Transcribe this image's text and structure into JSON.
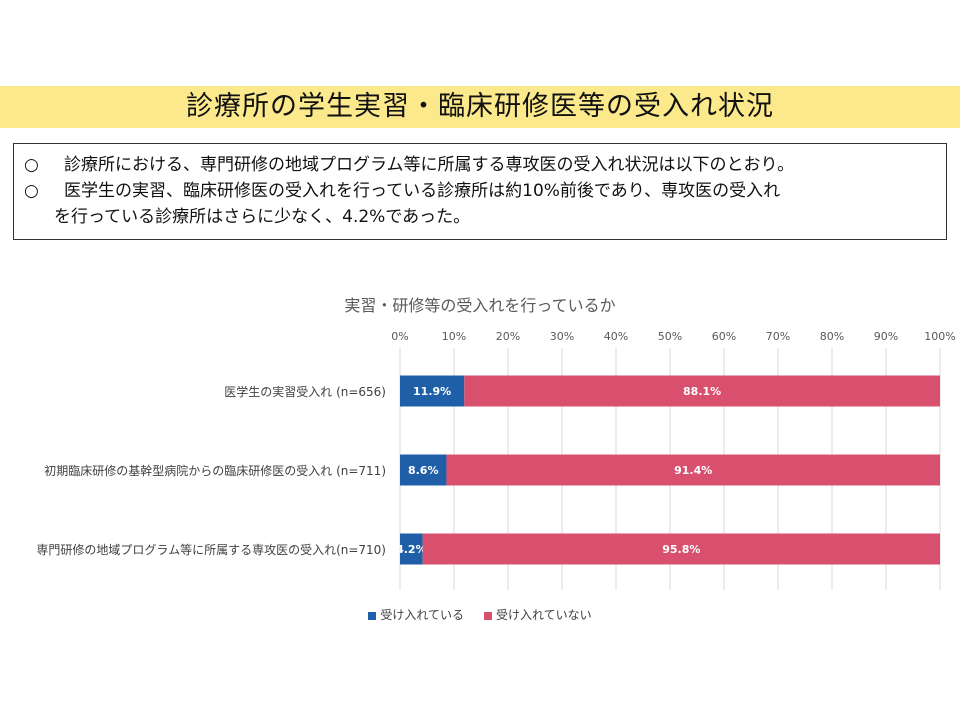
{
  "header": {
    "title": "診療所の学生実習・臨床研修医等の受入れ状況"
  },
  "summary": {
    "bullet_mark": "○",
    "line1": "診療所における、専門研修の地域プログラム等に所属する専攻医の受入れ状況は以下のとおり。",
    "line2": "医学生の実習、臨床研修医の受入れを行っている診療所は約10%前後であり、専攻医の受入れ",
    "line3": "を行っている診療所はさらに少なく、4.2%であった。"
  },
  "chart_data": {
    "type": "bar",
    "orientation": "horizontal-stacked-100",
    "title": "実習・研修等の受入れを行っているか",
    "xlim": [
      0,
      100
    ],
    "tick_labels": [
      "0%",
      "10%",
      "20%",
      "30%",
      "40%",
      "50%",
      "60%",
      "70%",
      "80%",
      "90%",
      "100%"
    ],
    "categories": [
      "医学生の実習受入れ (n=656)",
      "初期臨床研修の基幹型病院からの臨床研修医の受入れ (n=711)",
      "専門研修の地域プログラム等に所属する専攻医の受入れ(n=710)"
    ],
    "series": [
      {
        "name": "受け入れている",
        "color": "#1f5fa8",
        "values": [
          11.9,
          8.6,
          4.2
        ],
        "labels": [
          "11.9%",
          "8.6%",
          "4.2%"
        ]
      },
      {
        "name": "受け入れていない",
        "color": "#d9506e",
        "values": [
          88.1,
          91.4,
          95.8
        ],
        "labels": [
          "88.1%",
          "91.4%",
          "95.8%"
        ]
      }
    ],
    "grid": true,
    "legend_position": "bottom"
  }
}
